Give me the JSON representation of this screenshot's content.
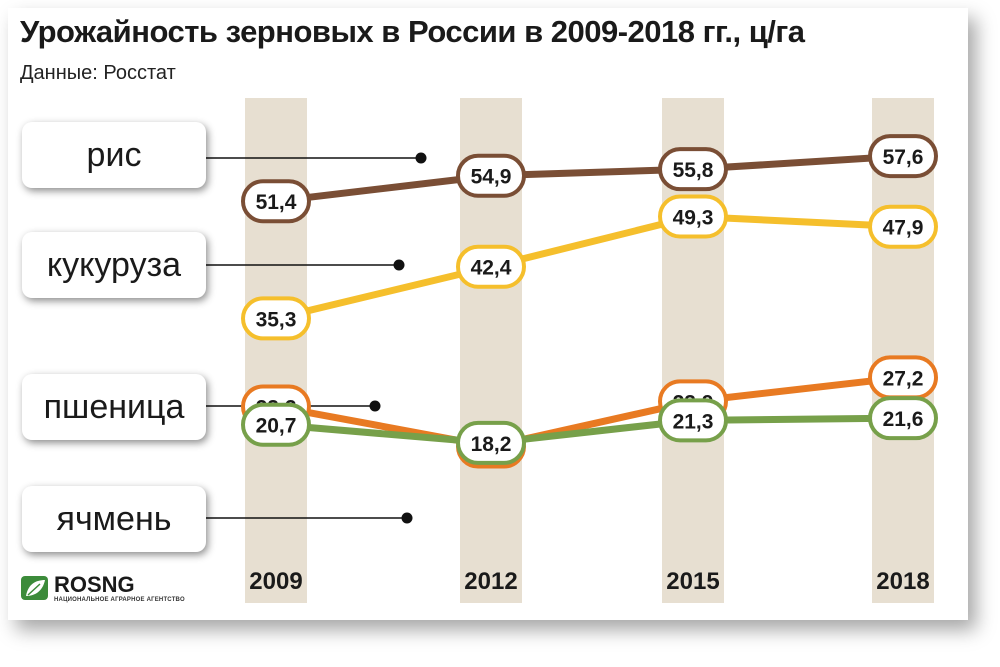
{
  "title": "Урожайность зерновых в России в 2009-2018 гг., ц/га",
  "subtitle": "Данные: Росстат",
  "logo": {
    "name": "ROSNG",
    "tagline": "НАЦИОНАЛЬНОЕ АГРАРНОЕ АГЕНТСТВО"
  },
  "chart_data": {
    "type": "line",
    "title": "Урожайность зерновых в России в 2009-2018 гг., ц/га",
    "subtitle": "Данные: Росстат",
    "x": [
      "2009",
      "2012",
      "2015",
      "2018"
    ],
    "grid": false,
    "series": [
      {
        "name": "рис",
        "color": "#7a4e35",
        "values": [
          51.4,
          54.9,
          55.8,
          57.6
        ],
        "labels": [
          "51,4",
          "54,9",
          "55,8",
          "57,6"
        ]
      },
      {
        "name": "кукуруза",
        "color": "#f5bf2c",
        "values": [
          35.3,
          42.4,
          49.3,
          47.9
        ],
        "labels": [
          "35,3",
          "42,4",
          "49,3",
          "47,9"
        ]
      },
      {
        "name": "пшеница",
        "color": "#e87a22",
        "values": [
          23.2,
          17.7,
          23.9,
          27.2
        ],
        "labels": [
          "23,2",
          "17,7",
          "23,9",
          "27,2"
        ]
      },
      {
        "name": "ячмень",
        "color": "#77a04a",
        "values": [
          20.7,
          18.2,
          21.3,
          21.6
        ],
        "labels": [
          "20,7",
          "18,2",
          "21,3",
          "21,6"
        ]
      }
    ],
    "column_color": "#e7dfd1"
  }
}
